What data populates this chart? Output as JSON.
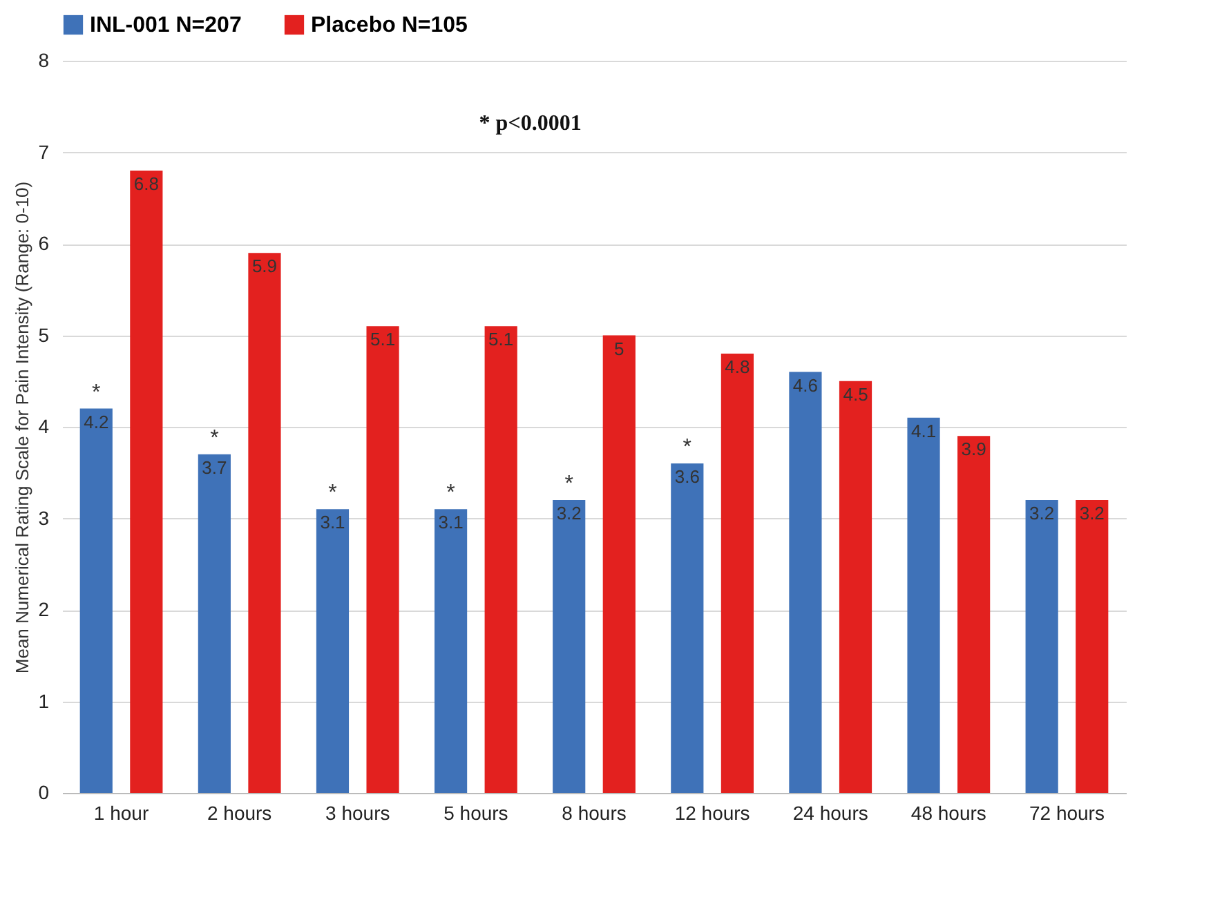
{
  "chart_data": {
    "type": "bar",
    "ylabel": "Mean Numerical Rating Scale for Pain Intensity (Range: 0-10)",
    "categories": [
      "1 hour",
      "2 hours",
      "3 hours",
      "5 hours",
      "8 hours",
      "12 hours",
      "24 hours",
      "48 hours",
      "72 hours"
    ],
    "series": [
      {
        "name": "INL-001 N=207",
        "color": "#3f72b8",
        "values": [
          4.2,
          3.7,
          3.1,
          3.1,
          3.2,
          3.6,
          4.6,
          4.1,
          3.2
        ]
      },
      {
        "name": "Placebo N=105",
        "color": "#e3211f",
        "values": [
          6.8,
          5.9,
          5.1,
          5.1,
          5,
          4.8,
          4.5,
          3.9,
          3.2
        ]
      }
    ],
    "ylim": [
      0,
      8
    ],
    "yticks": [
      0,
      1,
      2,
      3,
      4,
      5,
      6,
      7,
      8
    ],
    "grid": "y",
    "legend": "top",
    "data_labels": true,
    "annotations": [
      "* p<0.0001",
      "*",
      "*",
      "*",
      "*",
      "*",
      "*"
    ]
  }
}
